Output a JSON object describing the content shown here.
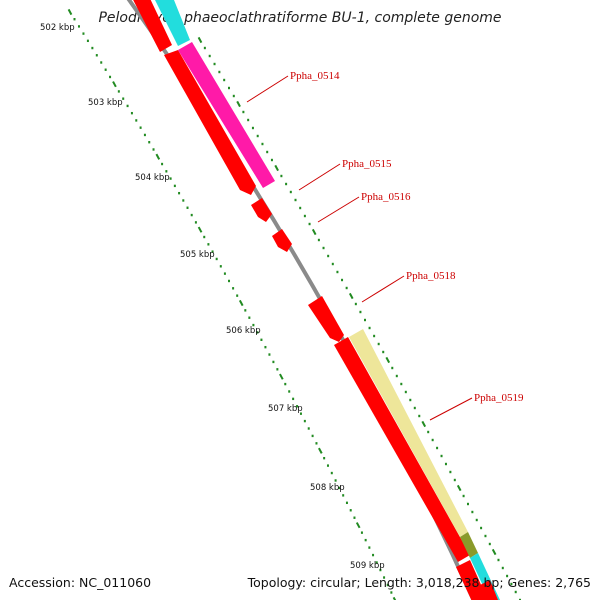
{
  "title": "Pelodictyon phaeoclathratiforme BU-1, complete genome",
  "footer": {
    "accession": "Accession: NC_011060",
    "summary": "Topology: circular; Length: 3,018,238 bp; Genes: 2,765"
  },
  "ticks": [
    {
      "label": "502 kbp"
    },
    {
      "label": "503 kbp"
    },
    {
      "label": "504 kbp"
    },
    {
      "label": "505 kbp"
    },
    {
      "label": "506 kbp"
    },
    {
      "label": "507 kbp"
    },
    {
      "label": "508 kbp"
    },
    {
      "label": "509 kbp"
    }
  ],
  "genes": [
    {
      "label": "Ppha_0514"
    },
    {
      "label": "Ppha_0515"
    },
    {
      "label": "Ppha_0516"
    },
    {
      "label": "Ppha_0518"
    },
    {
      "label": "Ppha_0519"
    }
  ],
  "colors": {
    "cds": "#ff0000",
    "cds_dark": "#cc0000",
    "magenta": "#ff1aa8",
    "cyan": "#22dddd",
    "khaki": "#eee69a",
    "olive": "#8a9a2a",
    "backbone": "#999999",
    "tick": "#228b22",
    "label": "#cc0000"
  }
}
